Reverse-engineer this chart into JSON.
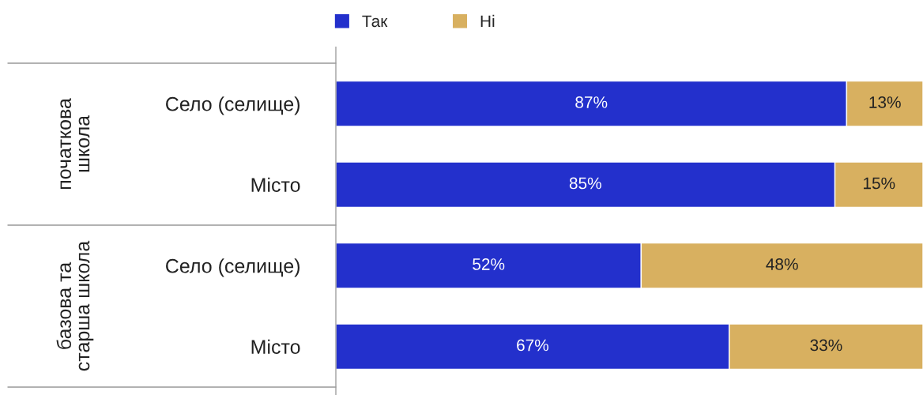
{
  "chart_data": {
    "type": "bar",
    "orientation": "horizontal",
    "stacked": true,
    "categories": [
      "Село (селище)",
      "Місто",
      "Село (селище)",
      "Місто"
    ],
    "series": [
      {
        "name": "Так",
        "color": "#2330cc",
        "values": [
          87,
          85,
          52,
          67
        ],
        "value_labels": [
          "87%",
          "85%",
          "52%",
          "67%"
        ]
      },
      {
        "name": "Ні",
        "color": "#d8b060",
        "values": [
          13,
          15,
          48,
          33
        ],
        "value_labels": [
          "13%",
          "15%",
          "48%",
          "33%"
        ]
      }
    ],
    "xlim": [
      0,
      100
    ],
    "tick_labels": "y",
    "legend": "top",
    "annotations": [
      "початкова\nшкола",
      "базова та\nстарша школа"
    ]
  }
}
